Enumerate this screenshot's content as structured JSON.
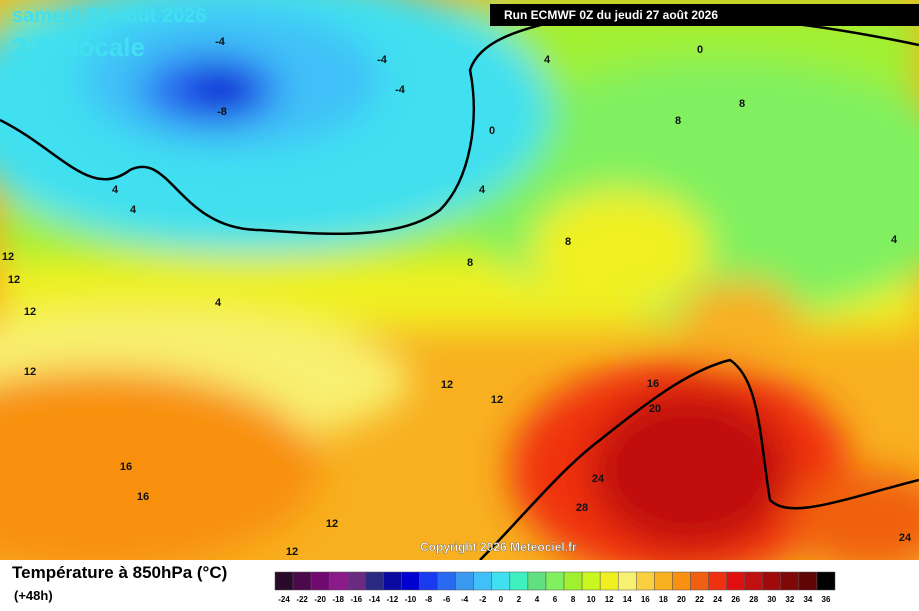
{
  "header": {
    "title": "samedi 29 août 2026",
    "time": "2:00 locale",
    "run": "Run ECMWF 0Z du jeudi 27 août 2026"
  },
  "copyright": "Copyright 2026 Meteociel.fr",
  "contour_labels": [
    "-4",
    "-4",
    "-4",
    "-8",
    "0",
    "0",
    "4",
    "4",
    "4",
    "4",
    "4",
    "4",
    "8",
    "8",
    "8",
    "8",
    "12",
    "12",
    "12",
    "12",
    "12",
    "12",
    "12",
    "12",
    "16",
    "16",
    "16",
    "20",
    "24",
    "24",
    "28"
  ],
  "legend": {
    "title": "Température à 850hPa (°C)",
    "lead": "(+48h)",
    "ticks": [
      -24,
      -22,
      -20,
      -18,
      -16,
      -14,
      -12,
      -10,
      -8,
      -6,
      -4,
      -2,
      0,
      2,
      4,
      6,
      8,
      10,
      12,
      14,
      16,
      18,
      20,
      22,
      24,
      26,
      28,
      30,
      32,
      34,
      36
    ],
    "colors": [
      "#2a0a2a",
      "#4b0a4b",
      "#700a70",
      "#8a1a8a",
      "#6a2a80",
      "#2a2a80",
      "#0a0aa0",
      "#0000d0",
      "#1a3af0",
      "#2a6af0",
      "#3a9af0",
      "#40c0f8",
      "#40e0f0",
      "#40f0c0",
      "#60e080",
      "#80f060",
      "#a0f030",
      "#c8f820",
      "#f0f020",
      "#f8f070",
      "#f8d040",
      "#f8b020",
      "#f89010",
      "#f06010",
      "#f03010",
      "#e01010",
      "#c01010",
      "#a00a0a",
      "#800808",
      "#600505",
      "#000000"
    ]
  }
}
